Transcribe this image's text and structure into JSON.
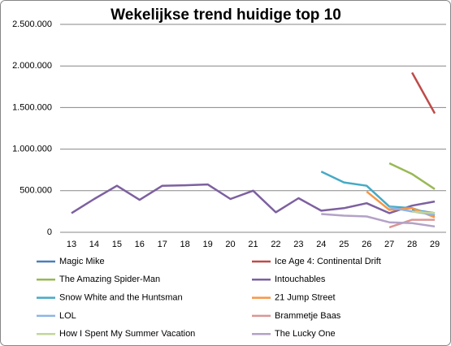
{
  "chart_data": {
    "type": "line",
    "title": "Wekelijkse trend huidige top 10",
    "categories": [
      "13",
      "14",
      "15",
      "16",
      "17",
      "18",
      "19",
      "20",
      "21",
      "22",
      "23",
      "24",
      "25",
      "26",
      "27",
      "28",
      "29"
    ],
    "ylim": [
      0,
      2500000
    ],
    "yticks": [
      0,
      {
        "value": 500000,
        "label": "500.000"
      },
      {
        "value": 1000000,
        "label": "1.000.000"
      },
      {
        "value": 1500000,
        "label": "1.500.000"
      },
      {
        "value": 2000000,
        "label": "2.000.000"
      },
      {
        "value": 2500000,
        "label": "2.500.000"
      }
    ],
    "grid": true,
    "legend": "bottom",
    "series": [
      {
        "name": "Magic Mike",
        "color": "#4a7ebb",
        "values": [
          null,
          null,
          null,
          null,
          null,
          null,
          null,
          null,
          null,
          null,
          null,
          null,
          null,
          null,
          null,
          270000,
          230000
        ]
      },
      {
        "name": "Ice Age 4: Continental Drift",
        "color": "#be4b48",
        "values": [
          null,
          null,
          null,
          null,
          null,
          null,
          null,
          null,
          null,
          null,
          null,
          null,
          null,
          null,
          null,
          1920000,
          1430000
        ]
      },
      {
        "name": "The Amazing Spider-Man",
        "color": "#98b954",
        "values": [
          null,
          null,
          null,
          null,
          null,
          null,
          null,
          null,
          null,
          null,
          null,
          null,
          null,
          null,
          830000,
          700000,
          520000
        ]
      },
      {
        "name": "Intouchables",
        "color": "#7d60a0",
        "values": [
          230000,
          400000,
          560000,
          390000,
          560000,
          565000,
          575000,
          400000,
          500000,
          240000,
          410000,
          260000,
          290000,
          350000,
          230000,
          320000,
          370000
        ]
      },
      {
        "name": "Snow White and the Huntsman",
        "color": "#46aac5",
        "values": [
          null,
          null,
          null,
          null,
          null,
          null,
          null,
          null,
          null,
          null,
          null,
          730000,
          600000,
          560000,
          310000,
          290000,
          200000
        ]
      },
      {
        "name": "21 Jump Street",
        "color": "#f79646",
        "values": [
          null,
          null,
          null,
          null,
          null,
          null,
          null,
          null,
          null,
          null,
          null,
          null,
          null,
          490000,
          270000,
          290000,
          180000
        ]
      },
      {
        "name": "LOL",
        "color": "#8eb4e3",
        "values": [
          null,
          null,
          null,
          null,
          null,
          null,
          null,
          null,
          null,
          null,
          null,
          null,
          null,
          null,
          300000,
          250000,
          210000
        ]
      },
      {
        "name": "Brammetje Baas",
        "color": "#d99694",
        "values": [
          null,
          null,
          null,
          null,
          null,
          null,
          null,
          null,
          null,
          null,
          null,
          null,
          null,
          null,
          60000,
          150000,
          150000
        ]
      },
      {
        "name": "How I Spent My Summer Vacation",
        "color": "#c3d69b",
        "values": [
          null,
          null,
          null,
          null,
          null,
          null,
          null,
          null,
          null,
          null,
          null,
          null,
          null,
          null,
          null,
          250000,
          230000
        ]
      },
      {
        "name": "The Lucky One",
        "color": "#b3a2c7",
        "values": [
          null,
          null,
          null,
          null,
          null,
          null,
          null,
          null,
          null,
          null,
          null,
          220000,
          200000,
          190000,
          120000,
          110000,
          70000
        ]
      }
    ]
  }
}
